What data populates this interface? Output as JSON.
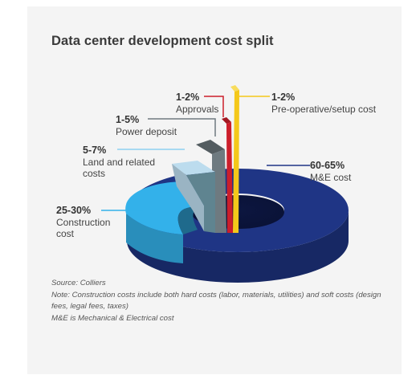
{
  "title": "Data center development cost split",
  "chart_data": {
    "type": "pie",
    "style": "3d-exploded-donut",
    "categories": [
      "M&E cost",
      "Construction cost",
      "Land and related costs",
      "Power deposit",
      "Approvals",
      "Pre-operative/setup cost"
    ],
    "value_ranges": [
      "60-65%",
      "25-30%",
      "5-7%",
      "1-5%",
      "1-2%",
      "1-2%"
    ],
    "values": [
      62.5,
      27.5,
      6,
      3,
      1.5,
      1.5
    ],
    "colors": [
      "#1f3585",
      "#33b1ea",
      "#bcdcee",
      "#6e7a80",
      "#cc1e2b",
      "#f4c81a"
    ],
    "labels": [
      {
        "value": "60-65%",
        "name_lines": [
          "M&E cost"
        ],
        "color": "#1f3585"
      },
      {
        "value": "25-30%",
        "name_lines": [
          "Construction",
          "cost"
        ],
        "color": "#33b1ea"
      },
      {
        "value": "5-7%",
        "name_lines": [
          "Land and related",
          "costs"
        ],
        "color": "#8fd0f0"
      },
      {
        "value": "1-5%",
        "name_lines": [
          "Power deposit"
        ],
        "color": "#6e7a80"
      },
      {
        "value": "1-2%",
        "name_lines": [
          "Approvals"
        ],
        "color": "#cc1e2b"
      },
      {
        "value": "1-2%",
        "name_lines": [
          "Pre-operative/setup cost"
        ],
        "color": "#f4c81a"
      }
    ]
  },
  "notes": {
    "source": "Source: Colliers",
    "note": "Note: Construction costs include both hard costs (labor, materials, utilities) and soft costs (design fees, legal fees, taxes)",
    "me_definition": "M&E is Mechanical & Electrical cost"
  }
}
